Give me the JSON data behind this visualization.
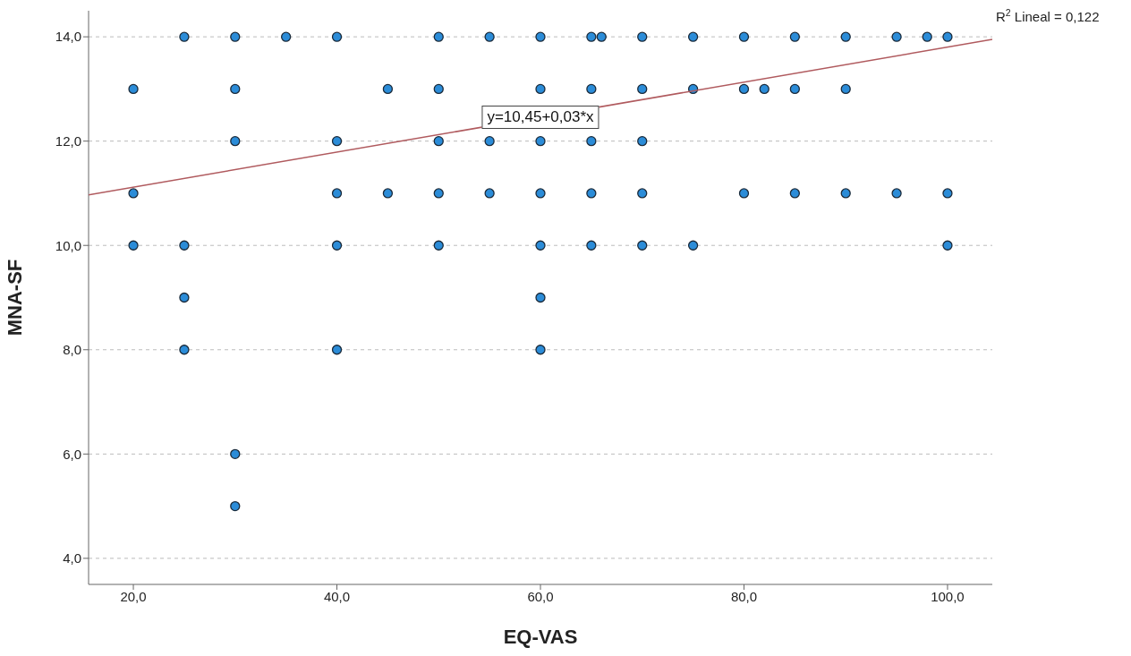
{
  "chart_data": {
    "type": "scatter",
    "xlabel": "EQ-VAS",
    "ylabel": "MNA-SF",
    "xlim": [
      15.6,
      104.4
    ],
    "ylim": [
      3.5,
      14.5
    ],
    "xticks": [
      {
        "value": 20,
        "label": "20,0"
      },
      {
        "value": 40,
        "label": "40,0"
      },
      {
        "value": 60,
        "label": "60,0"
      },
      {
        "value": 80,
        "label": "80,0"
      },
      {
        "value": 100,
        "label": "100,0"
      }
    ],
    "yticks": [
      {
        "value": 4,
        "label": "4,0"
      },
      {
        "value": 6,
        "label": "6,0"
      },
      {
        "value": 8,
        "label": "8,0"
      },
      {
        "value": 10,
        "label": "10,0"
      },
      {
        "value": 12,
        "label": "12,0"
      },
      {
        "value": 14,
        "label": "14,0"
      }
    ],
    "grid": "y",
    "series": [
      {
        "marker": "circle",
        "color": "#2b8cd8",
        "x": [
          25,
          30,
          35,
          40,
          50,
          55,
          60,
          65,
          66,
          70,
          75,
          80,
          85,
          90,
          95,
          98,
          100,
          20,
          30,
          45,
          50,
          60,
          65,
          70,
          75,
          80,
          82,
          85,
          90,
          30,
          40,
          50,
          55,
          60,
          65,
          70,
          20,
          40,
          45,
          50,
          55,
          60,
          65,
          70,
          80,
          85,
          90,
          95,
          100,
          20,
          25,
          40,
          50,
          60,
          65,
          70,
          75,
          100,
          25,
          60,
          25,
          40,
          60,
          30,
          30
        ],
        "values": [
          14,
          14,
          14,
          14,
          14,
          14,
          14,
          14,
          14,
          14,
          14,
          14,
          14,
          14,
          14,
          14,
          14,
          13,
          13,
          13,
          13,
          13,
          13,
          13,
          13,
          13,
          13,
          13,
          13,
          12,
          12,
          12,
          12,
          12,
          12,
          12,
          11,
          11,
          11,
          11,
          11,
          11,
          11,
          11,
          11,
          11,
          11,
          11,
          11,
          10,
          10,
          10,
          10,
          10,
          10,
          10,
          10,
          10,
          9,
          9,
          8,
          8,
          8,
          6,
          5
        ]
      },
      {
        "type": "line",
        "color": "#b05a5e",
        "x": [
          15.6,
          104.4
        ],
        "values": [
          10.97,
          13.95
        ]
      }
    ],
    "annotations": [
      {
        "text": "y=10,45+0,03*x",
        "x": 60,
        "y": 12.45
      },
      "R$^{2}$ Lineal = 0,122"
    ]
  }
}
